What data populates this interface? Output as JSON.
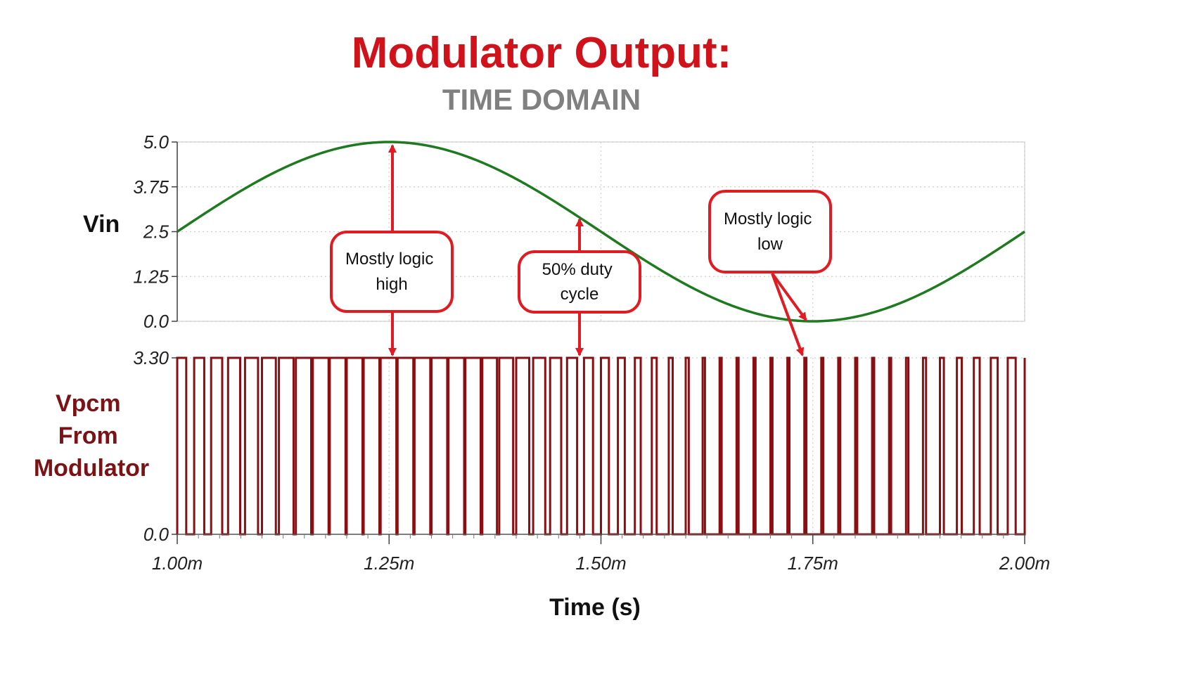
{
  "colors": {
    "title": "#d0121b",
    "subtitle": "#808080",
    "sine": "#1e7a1e",
    "pulse": "#8b0f12",
    "arrow": "#e01b22",
    "grid": "#cfcfcf",
    "vpcm_label": "#7b1216"
  },
  "title": "Modulator Output:",
  "subtitle": "TIME DOMAIN",
  "chart_data": [
    {
      "type": "line",
      "ylabel": "Vin",
      "ylim": [
        0,
        5
      ],
      "yticks": [
        "5.0",
        "3.75",
        "2.5",
        "1.25",
        "0.0"
      ],
      "ytick_values": [
        5,
        3.75,
        2.5,
        1.25,
        0
      ],
      "xlim": [
        1.0,
        2.0
      ],
      "series": [
        {
          "function": "2.5 + 2.5*sin(2*pi*(t-1.0)/1.0)",
          "x": [
            1.0,
            1.05,
            1.1,
            1.15,
            1.2,
            1.25,
            1.3,
            1.35,
            1.4,
            1.45,
            1.5,
            1.55,
            1.6,
            1.65,
            1.7,
            1.75,
            1.8,
            1.85,
            1.9,
            1.95,
            2.0
          ],
          "y": [
            2.5,
            3.27,
            3.97,
            4.52,
            4.88,
            5.0,
            4.88,
            4.52,
            3.97,
            3.27,
            2.5,
            1.73,
            1.03,
            0.48,
            0.12,
            0.0,
            0.12,
            0.48,
            1.03,
            1.73,
            2.5
          ]
        }
      ],
      "annotations": [
        {
          "text_lines": [
            "Mostly logic",
            "high"
          ],
          "x": 1.255,
          "y": 2.6
        },
        {
          "text_lines": [
            "50% duty",
            "cycle"
          ],
          "x": 1.478,
          "y": 1.7
        },
        {
          "text_lines": [
            "Mostly logic",
            "low"
          ],
          "x": 1.705,
          "y": 3.3
        }
      ]
    },
    {
      "type": "line",
      "ylabel_lines": [
        "Vpcm",
        "From",
        "Modulator"
      ],
      "ylim": [
        0,
        3.3
      ],
      "yticks": [
        "3.30",
        "0.0"
      ],
      "ytick_values": [
        3.3,
        0
      ],
      "xlim": [
        1.0,
        2.0
      ],
      "xticks": [
        "1.00m",
        "1.25m",
        "1.50m",
        "1.75m",
        "2.00m"
      ],
      "xtick_values": [
        1.0,
        1.25,
        1.5,
        1.75,
        2.0
      ],
      "xlabel": "Time (s)",
      "series": [
        {
          "high_level": 3.3,
          "low_level": 0,
          "pulse_count": 50,
          "period_ms": 0.02,
          "duty_cycle_rule": "Vin / 5.0"
        }
      ]
    }
  ]
}
